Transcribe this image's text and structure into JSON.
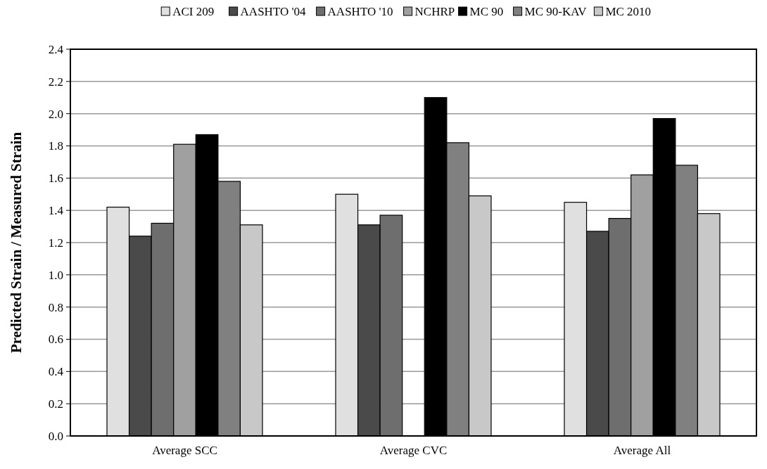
{
  "chart_data": {
    "type": "bar",
    "ylabel": "Predicted Strain / Measured Strain",
    "categories": [
      "Average SCC",
      "Average CVC",
      "Average All"
    ],
    "series": [
      {
        "name": "ACI 209",
        "color": "#e0e0e0",
        "values": [
          1.42,
          1.5,
          1.45
        ]
      },
      {
        "name": "AASHTO '04",
        "color": "#4a4a4a",
        "values": [
          1.24,
          1.31,
          1.27
        ]
      },
      {
        "name": "AASHTO '10",
        "color": "#6e6e6e",
        "values": [
          1.32,
          1.37,
          1.35
        ]
      },
      {
        "name": "NCHRP",
        "color": "#a0a0a0",
        "values": [
          1.81,
          null,
          1.62
        ]
      },
      {
        "name": "MC 90",
        "color": "#000000",
        "values": [
          1.87,
          2.1,
          1.97
        ]
      },
      {
        "name": "MC 90-KAV",
        "color": "#808080",
        "values": [
          1.58,
          1.82,
          1.68
        ]
      },
      {
        "name": "MC 2010",
        "color": "#c8c8c8",
        "values": [
          1.31,
          1.49,
          1.38
        ]
      }
    ],
    "ylim": [
      0,
      2.4
    ],
    "yticks": [
      {
        "value": 0,
        "label": "0.0"
      },
      {
        "value": 0.2,
        "label": "0.2"
      },
      {
        "value": 0.4,
        "label": "0.4"
      },
      {
        "value": 0.6,
        "label": "0.6"
      },
      {
        "value": 0.8,
        "label": "0.8"
      },
      {
        "value": 1,
        "label": "1.0"
      },
      {
        "value": 1.2,
        "label": "1.2"
      },
      {
        "value": 1.4,
        "label": "1.4"
      },
      {
        "value": 1.6,
        "label": "1.6"
      },
      {
        "value": 1.8,
        "label": "1.8"
      },
      {
        "value": 2,
        "label": "2.0"
      },
      {
        "value": 2.2,
        "label": "2.2"
      },
      {
        "value": 2.4,
        "label": "2.4"
      }
    ],
    "grid": "y",
    "legend": "top"
  }
}
